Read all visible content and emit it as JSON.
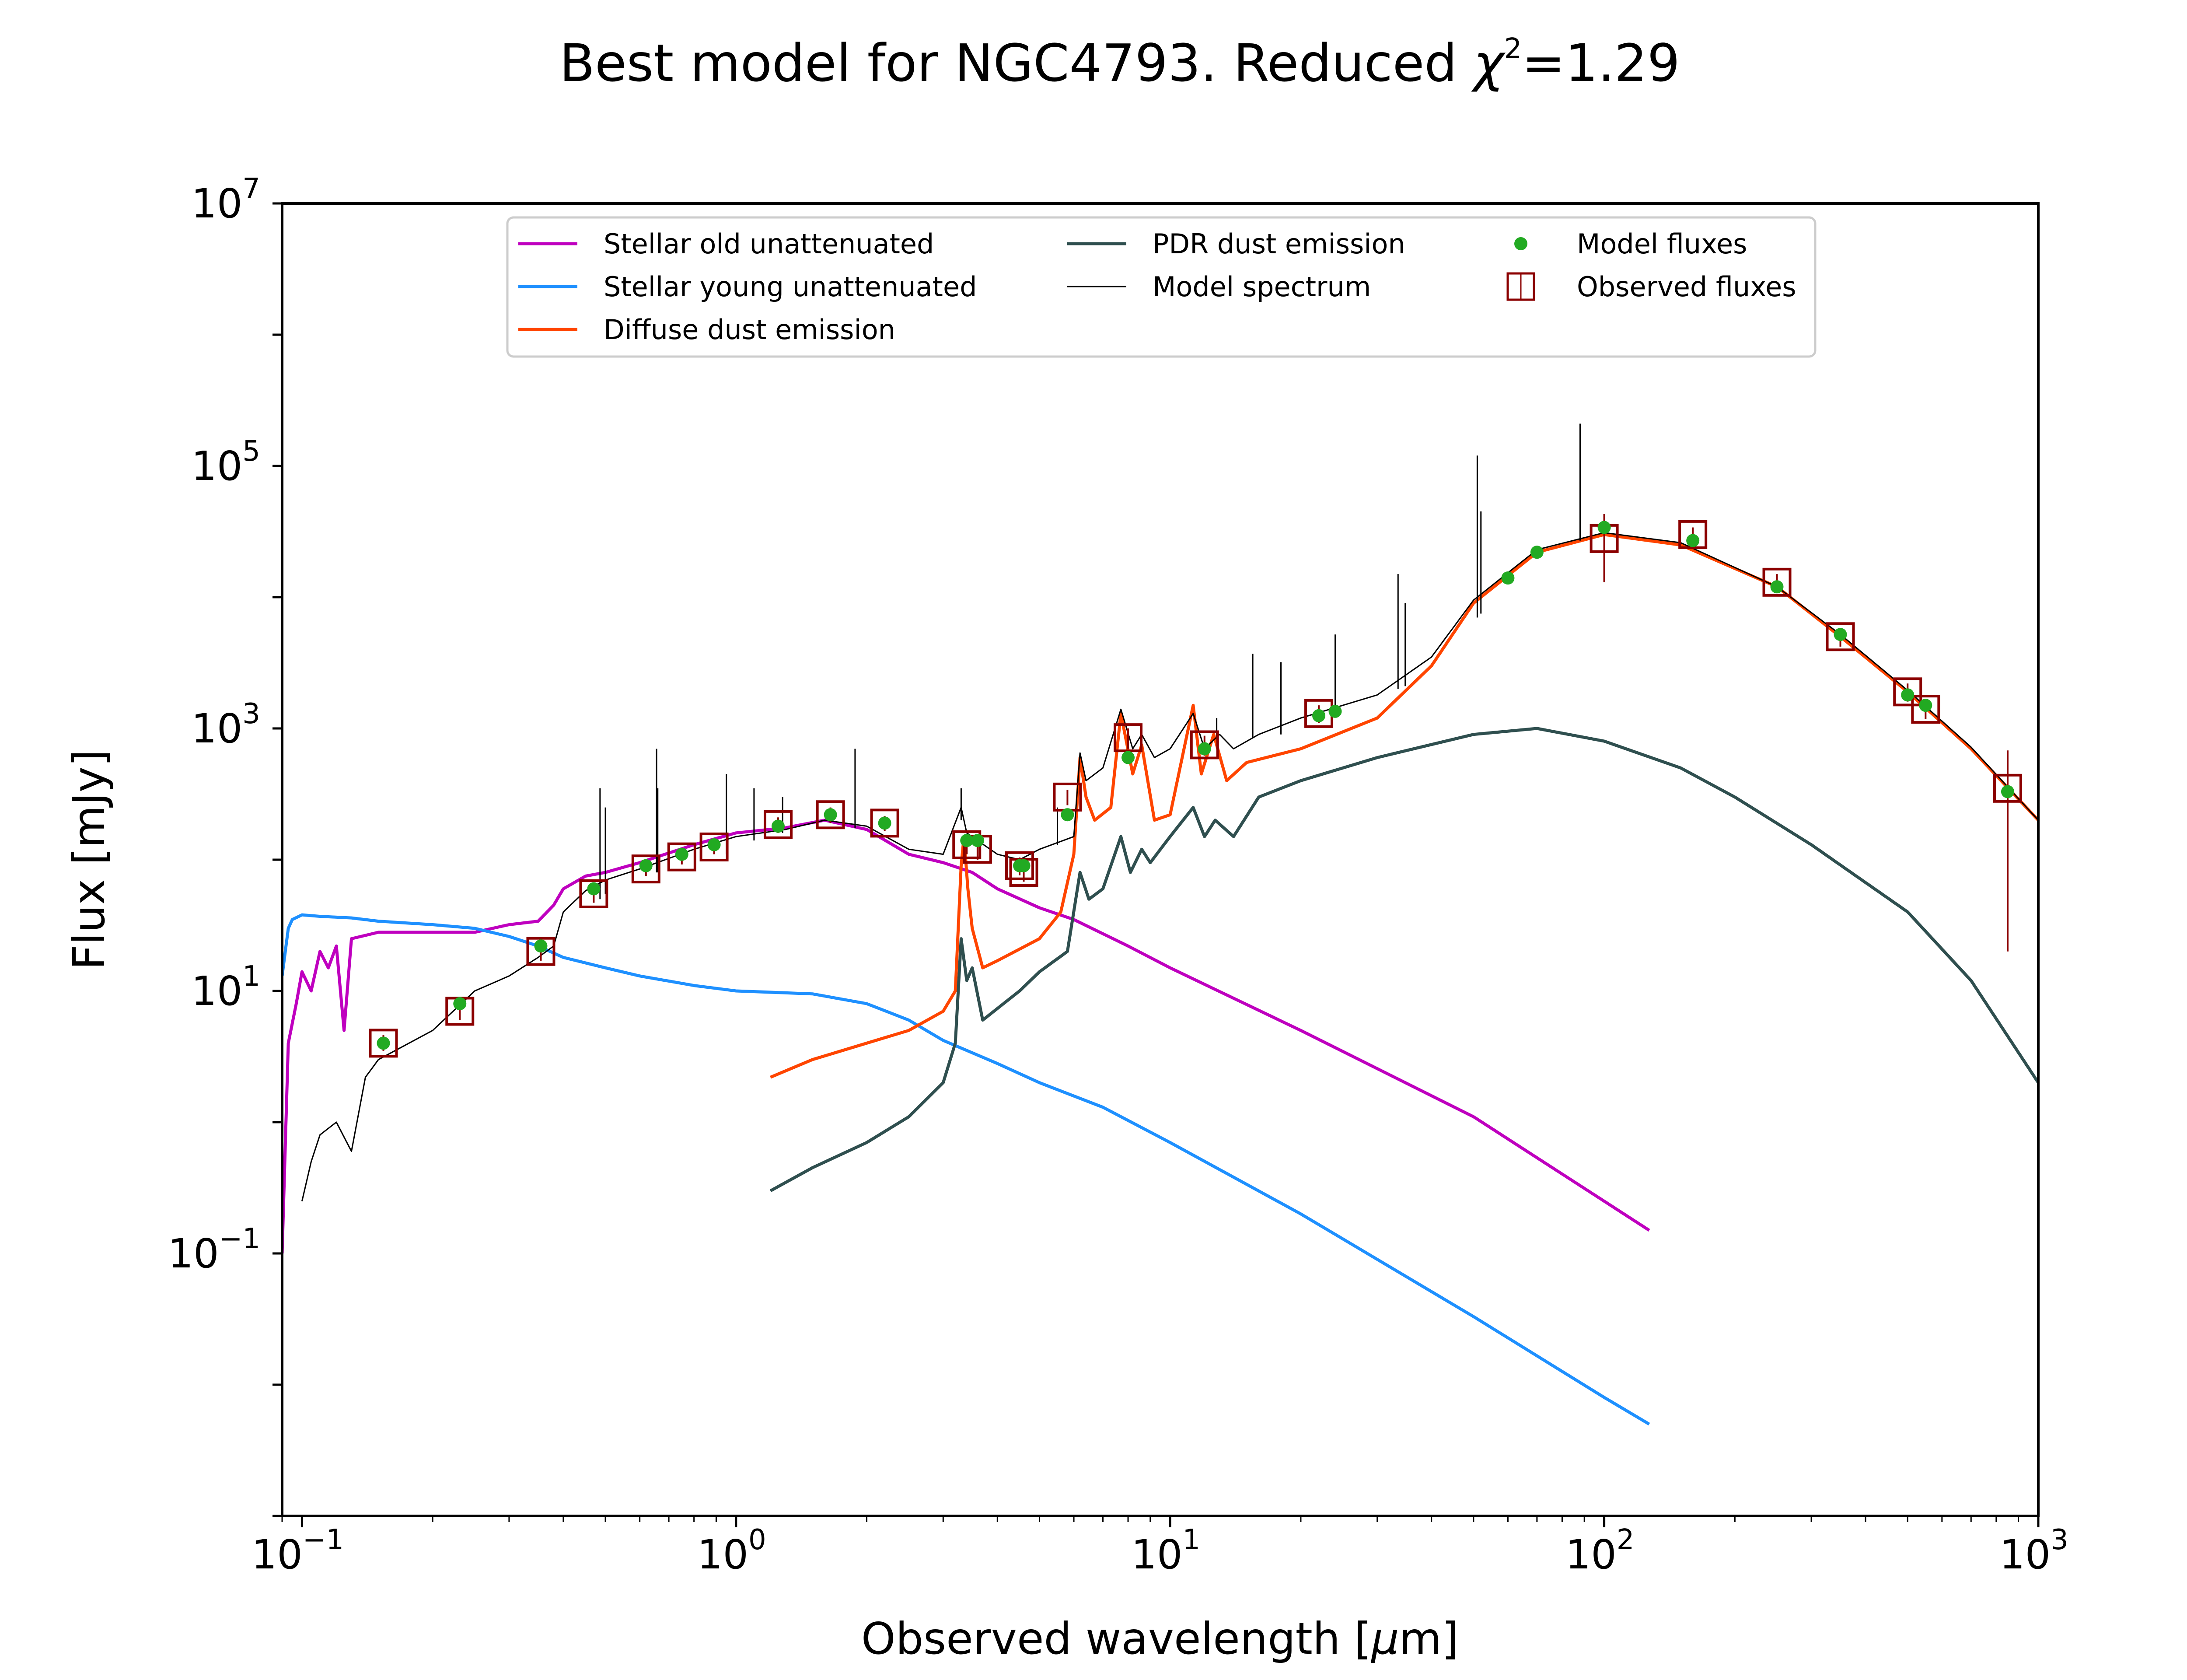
{
  "chart_data": {
    "type": "line",
    "title": "Best model for NGC4793. Reduced χ²=1.29",
    "title_parts": {
      "prefix": "Best model for NGC4793. Reduced ",
      "symbol": "χ",
      "sup": "2",
      "suffix": "=1.29"
    },
    "xlabel": "Observed wavelength [μm]",
    "xlabel_parts": {
      "prefix": "Observed wavelength [",
      "mu": "μ",
      "suffix": "m]"
    },
    "ylabel": "Flux [mJy]",
    "xscale": "log",
    "yscale": "log",
    "xlim": [
      0.09,
      1000
    ],
    "ylim": [
      0.001,
      10000000
    ],
    "x_ticks": [
      {
        "base": "10",
        "exp": "−1",
        "value": 0.1
      },
      {
        "base": "10",
        "exp": "0",
        "value": 1
      },
      {
        "base": "10",
        "exp": "1",
        "value": 10
      },
      {
        "base": "10",
        "exp": "2",
        "value": 100
      },
      {
        "base": "10",
        "exp": "3",
        "value": 1000
      }
    ],
    "y_ticks": [
      {
        "base": "10",
        "exp": "−1",
        "value": 0.1
      },
      {
        "base": "10",
        "exp": "1",
        "value": 10
      },
      {
        "base": "10",
        "exp": "3",
        "value": 1000
      },
      {
        "base": "10",
        "exp": "5",
        "value": 100000
      },
      {
        "base": "10",
        "exp": "7",
        "value": 10000000
      }
    ],
    "legend_position": "upper center",
    "legend": [
      {
        "label": "Stellar old unattenuated",
        "kind": "line",
        "color": "#bf00bf"
      },
      {
        "label": "Stellar young unattenuated",
        "kind": "line",
        "color": "#1e90ff"
      },
      {
        "label": "Diffuse dust emission",
        "kind": "line",
        "color": "#ff4500"
      },
      {
        "label": "PDR dust emission",
        "kind": "line",
        "color": "#2f4f4f"
      },
      {
        "label": "Model spectrum",
        "kind": "thinline",
        "color": "#000000"
      },
      {
        "label": "Model fluxes",
        "kind": "dot",
        "color": "#22aa22"
      },
      {
        "label": "Observed fluxes",
        "kind": "box",
        "color": "#8b0000"
      }
    ],
    "series": [
      {
        "name": "Stellar old unattenuated",
        "color": "#bf00bf",
        "width": 7,
        "points": [
          [
            0.09,
            0.1
          ],
          [
            0.093,
            4
          ],
          [
            0.097,
            8
          ],
          [
            0.1,
            14
          ],
          [
            0.105,
            10
          ],
          [
            0.11,
            20
          ],
          [
            0.115,
            15
          ],
          [
            0.12,
            22
          ],
          [
            0.125,
            5
          ],
          [
            0.13,
            25
          ],
          [
            0.15,
            28
          ],
          [
            0.2,
            28
          ],
          [
            0.25,
            28
          ],
          [
            0.3,
            32
          ],
          [
            0.35,
            34
          ],
          [
            0.38,
            45
          ],
          [
            0.4,
            60
          ],
          [
            0.45,
            75
          ],
          [
            0.5,
            80
          ],
          [
            0.6,
            95
          ],
          [
            0.8,
            130
          ],
          [
            1.0,
            160
          ],
          [
            1.3,
            175
          ],
          [
            1.6,
            200
          ],
          [
            2.0,
            170
          ],
          [
            2.5,
            110
          ],
          [
            3.0,
            95
          ],
          [
            3.5,
            80
          ],
          [
            4.0,
            60
          ],
          [
            5.0,
            43
          ],
          [
            6.0,
            35
          ],
          [
            8.0,
            22
          ],
          [
            10,
            15
          ],
          [
            20,
            5
          ],
          [
            50,
            1.1
          ],
          [
            100,
            0.25
          ],
          [
            127,
            0.15
          ]
        ]
      },
      {
        "name": "Stellar young unattenuated",
        "color": "#1e90ff",
        "width": 7,
        "points": [
          [
            0.09,
            13
          ],
          [
            0.093,
            30
          ],
          [
            0.095,
            35
          ],
          [
            0.1,
            38
          ],
          [
            0.11,
            37
          ],
          [
            0.13,
            36
          ],
          [
            0.15,
            34
          ],
          [
            0.2,
            32
          ],
          [
            0.25,
            30
          ],
          [
            0.3,
            26
          ],
          [
            0.35,
            22
          ],
          [
            0.4,
            18
          ],
          [
            0.5,
            15
          ],
          [
            0.6,
            13
          ],
          [
            0.8,
            11
          ],
          [
            1.0,
            10
          ],
          [
            1.5,
            9.5
          ],
          [
            2.0,
            8
          ],
          [
            2.5,
            6
          ],
          [
            3.0,
            4.2
          ],
          [
            4.0,
            2.8
          ],
          [
            5.0,
            2.0
          ],
          [
            7.0,
            1.3
          ],
          [
            10,
            0.7
          ],
          [
            20,
            0.2
          ],
          [
            50,
            0.033
          ],
          [
            100,
            0.008
          ],
          [
            127,
            0.005
          ]
        ]
      },
      {
        "name": "Diffuse dust emission",
        "color": "#ff4500",
        "width": 7,
        "points": [
          [
            1.2,
            2.2
          ],
          [
            1.5,
            3
          ],
          [
            2,
            4
          ],
          [
            2.5,
            5
          ],
          [
            3.0,
            7
          ],
          [
            3.2,
            10
          ],
          [
            3.3,
            90
          ],
          [
            3.35,
            150
          ],
          [
            3.42,
            60
          ],
          [
            3.5,
            30
          ],
          [
            3.7,
            15
          ],
          [
            4.0,
            17
          ],
          [
            5.0,
            25
          ],
          [
            5.6,
            40
          ],
          [
            6.0,
            110
          ],
          [
            6.2,
            600
          ],
          [
            6.4,
            300
          ],
          [
            6.7,
            200
          ],
          [
            7.3,
            250
          ],
          [
            7.7,
            1300
          ],
          [
            8.2,
            450
          ],
          [
            8.6,
            750
          ],
          [
            9.2,
            200
          ],
          [
            10,
            220
          ],
          [
            11.3,
            1500
          ],
          [
            11.8,
            450
          ],
          [
            12.6,
            900
          ],
          [
            13.5,
            400
          ],
          [
            15,
            550
          ],
          [
            20,
            700
          ],
          [
            30,
            1200
          ],
          [
            40,
            3000
          ],
          [
            50,
            9000
          ],
          [
            70,
            22000
          ],
          [
            100,
            30000
          ],
          [
            150,
            25000
          ],
          [
            250,
            12000
          ],
          [
            350,
            5000
          ],
          [
            500,
            1900
          ],
          [
            700,
            700
          ],
          [
            1000,
            200
          ]
        ]
      },
      {
        "name": "PDR dust emission",
        "color": "#2f4f4f",
        "width": 7,
        "points": [
          [
            1.2,
            0.3
          ],
          [
            1.5,
            0.45
          ],
          [
            2,
            0.7
          ],
          [
            2.5,
            1.1
          ],
          [
            3.0,
            2
          ],
          [
            3.2,
            4
          ],
          [
            3.3,
            25
          ],
          [
            3.4,
            12
          ],
          [
            3.5,
            15
          ],
          [
            3.7,
            6
          ],
          [
            4.5,
            10
          ],
          [
            5.0,
            14
          ],
          [
            5.8,
            20
          ],
          [
            6.2,
            80
          ],
          [
            6.5,
            50
          ],
          [
            7.0,
            60
          ],
          [
            7.7,
            150
          ],
          [
            8.1,
            80
          ],
          [
            8.6,
            120
          ],
          [
            9.0,
            95
          ],
          [
            10,
            150
          ],
          [
            11.3,
            250
          ],
          [
            12,
            150
          ],
          [
            12.7,
            200
          ],
          [
            14,
            150
          ],
          [
            16,
            300
          ],
          [
            20,
            400
          ],
          [
            30,
            600
          ],
          [
            50,
            900
          ],
          [
            70,
            1000
          ],
          [
            100,
            800
          ],
          [
            150,
            500
          ],
          [
            200,
            300
          ],
          [
            300,
            130
          ],
          [
            500,
            40
          ],
          [
            700,
            12
          ],
          [
            1000,
            2
          ]
        ]
      },
      {
        "name": "Model spectrum",
        "color": "#000000",
        "width": 3,
        "points": [
          [
            0.1,
            0.25
          ],
          [
            0.105,
            0.5
          ],
          [
            0.11,
            0.8
          ],
          [
            0.12,
            1
          ],
          [
            0.13,
            0.6
          ],
          [
            0.14,
            2.2
          ],
          [
            0.15,
            3
          ],
          [
            0.2,
            5
          ],
          [
            0.25,
            10
          ],
          [
            0.3,
            13
          ],
          [
            0.35,
            18
          ],
          [
            0.38,
            22
          ],
          [
            0.4,
            40
          ],
          [
            0.45,
            58
          ],
          [
            0.5,
            70
          ],
          [
            0.6,
            85
          ],
          [
            0.8,
            120
          ],
          [
            1.0,
            150
          ],
          [
            1.3,
            170
          ],
          [
            1.6,
            200
          ],
          [
            2.0,
            180
          ],
          [
            2.5,
            120
          ],
          [
            3.0,
            110
          ],
          [
            3.3,
            250
          ],
          [
            3.4,
            160
          ],
          [
            3.6,
            140
          ],
          [
            4.0,
            110
          ],
          [
            4.5,
            100
          ],
          [
            5.0,
            120
          ],
          [
            6.0,
            150
          ],
          [
            6.2,
            650
          ],
          [
            6.4,
            400
          ],
          [
            7.0,
            500
          ],
          [
            7.7,
            1400
          ],
          [
            8.2,
            700
          ],
          [
            8.6,
            900
          ],
          [
            9.2,
            600
          ],
          [
            10,
            700
          ],
          [
            11.3,
            1300
          ],
          [
            12,
            700
          ],
          [
            13,
            900
          ],
          [
            14,
            700
          ],
          [
            16,
            900
          ],
          [
            20,
            1200
          ],
          [
            30,
            1800
          ],
          [
            40,
            3500
          ],
          [
            50,
            9500
          ],
          [
            70,
            23000
          ],
          [
            100,
            31000
          ],
          [
            150,
            26000
          ],
          [
            250,
            12000
          ],
          [
            350,
            5200
          ],
          [
            500,
            1950
          ],
          [
            700,
            720
          ],
          [
            1000,
            200
          ]
        ]
      }
    ],
    "emission_lines": [
      [
        0.486,
        50,
        350
      ],
      [
        0.5,
        55,
        250
      ],
      [
        0.656,
        80,
        700
      ],
      [
        0.66,
        80,
        350
      ],
      [
        0.95,
        110,
        450
      ],
      [
        1.1,
        140,
        350
      ],
      [
        1.28,
        160,
        300
      ],
      [
        1.88,
        175,
        700
      ],
      [
        3.3,
        200,
        350
      ],
      [
        5.5,
        130,
        250
      ],
      [
        12.8,
        850,
        1200
      ],
      [
        15.5,
        850,
        3700
      ],
      [
        18,
        900,
        3200
      ],
      [
        24,
        1300,
        5200
      ],
      [
        33.5,
        2000,
        15000
      ],
      [
        34.8,
        2100,
        9000
      ],
      [
        51,
        7000,
        120000
      ],
      [
        52,
        7500,
        45000
      ],
      [
        88,
        27000,
        210000
      ]
    ],
    "model_fluxes": [
      [
        0.154,
        4
      ],
      [
        0.231,
        8
      ],
      [
        0.355,
        22
      ],
      [
        0.47,
        60
      ],
      [
        0.62,
        90
      ],
      [
        0.75,
        110
      ],
      [
        0.89,
        130
      ],
      [
        1.25,
        180
      ],
      [
        1.65,
        220
      ],
      [
        2.2,
        190
      ],
      [
        3.4,
        140
      ],
      [
        3.6,
        140
      ],
      [
        4.5,
        90
      ],
      [
        4.6,
        90
      ],
      [
        5.8,
        220
      ],
      [
        8.0,
        600
      ],
      [
        12,
        700
      ],
      [
        22,
        1250
      ],
      [
        24,
        1350
      ],
      [
        60,
        14000
      ],
      [
        70,
        22000
      ],
      [
        100,
        34000
      ],
      [
        160,
        27000
      ],
      [
        250,
        12000
      ],
      [
        350,
        5200
      ],
      [
        500,
        1800
      ],
      [
        550,
        1500
      ],
      [
        850,
        330
      ]
    ],
    "observed_fluxes": [
      {
        "x": 0.154,
        "y": 4,
        "lo": 3.5,
        "hi": 4.6
      },
      {
        "x": 0.231,
        "y": 7,
        "lo": 6,
        "hi": 8
      },
      {
        "x": 0.355,
        "y": 20,
        "lo": 17,
        "hi": 24
      },
      {
        "x": 0.47,
        "y": 55,
        "lo": 47,
        "hi": 63
      },
      {
        "x": 0.62,
        "y": 85,
        "lo": 75,
        "hi": 96
      },
      {
        "x": 0.75,
        "y": 105,
        "lo": 92,
        "hi": 118
      },
      {
        "x": 0.89,
        "y": 125,
        "lo": 110,
        "hi": 140
      },
      {
        "x": 1.25,
        "y": 185,
        "lo": 160,
        "hi": 210
      },
      {
        "x": 1.65,
        "y": 220,
        "lo": 190,
        "hi": 250
      },
      {
        "x": 2.2,
        "y": 190,
        "lo": 165,
        "hi": 215
      },
      {
        "x": 3.4,
        "y": 130,
        "lo": 110,
        "hi": 150
      },
      {
        "x": 3.6,
        "y": 120,
        "lo": 100,
        "hi": 140
      },
      {
        "x": 4.5,
        "y": 90,
        "lo": 76,
        "hi": 104
      },
      {
        "x": 4.6,
        "y": 80,
        "lo": 68,
        "hi": 92
      },
      {
        "x": 5.8,
        "y": 300,
        "lo": 260,
        "hi": 340
      },
      {
        "x": 8.0,
        "y": 850,
        "lo": 700,
        "hi": 1000
      },
      {
        "x": 12,
        "y": 750,
        "lo": 620,
        "hi": 880
      },
      {
        "x": 22,
        "y": 1300,
        "lo": 1100,
        "hi": 1500
      },
      {
        "x": 100,
        "y": 28000,
        "lo": 13000,
        "hi": 43000
      },
      {
        "x": 160,
        "y": 30000,
        "lo": 26000,
        "hi": 34000
      },
      {
        "x": 250,
        "y": 13000,
        "lo": 11000,
        "hi": 15000
      },
      {
        "x": 350,
        "y": 5000,
        "lo": 4200,
        "hi": 5800
      },
      {
        "x": 500,
        "y": 1900,
        "lo": 1600,
        "hi": 2200
      },
      {
        "x": 550,
        "y": 1400,
        "lo": 1180,
        "hi": 1620
      },
      {
        "x": 850,
        "y": 350,
        "lo": 20,
        "hi": 680
      }
    ]
  }
}
